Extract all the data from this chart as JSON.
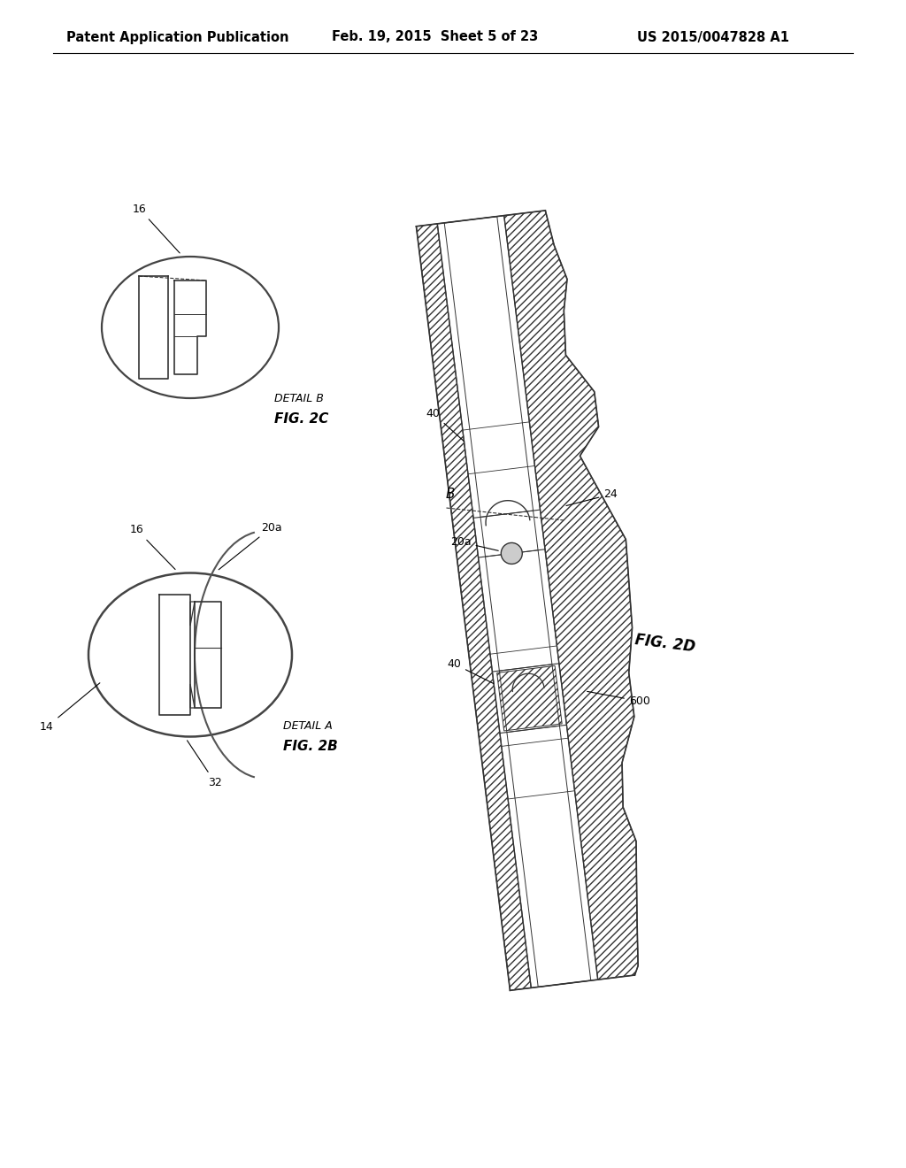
{
  "bg_color": "#ffffff",
  "header_left": "Patent Application Publication",
  "header_mid": "Feb. 19, 2015  Sheet 5 of 23",
  "header_right": "US 2015/0047828 A1",
  "header_fontsize": 10.5,
  "detail_b_label": "DETAIL B",
  "fig_2c_label": "FIG. 2C",
  "detail_a_label": "DETAIL A",
  "fig_2b_label": "FIG. 2B",
  "fig_2d_label": "FIG. 2D",
  "line_color": "#333333",
  "hatch_color": "#555555"
}
